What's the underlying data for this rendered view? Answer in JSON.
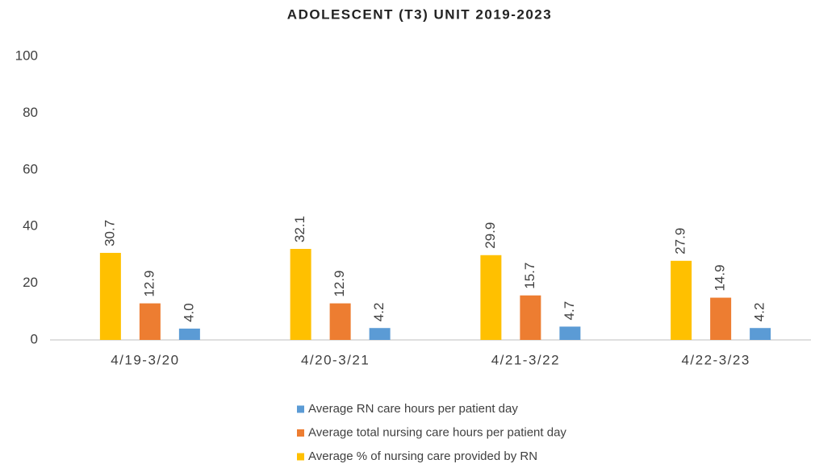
{
  "chart_data": {
    "type": "bar",
    "title": "ADOLESCENT (T3) UNIT 2019-2023",
    "categories": [
      "4/19-3/20",
      "4/20-3/21",
      "4/21-3/22",
      "4/22-3/23"
    ],
    "series": [
      {
        "name": "Average RN care hours per patient day",
        "color": "#5b9bd5",
        "values": [
          4.0,
          4.2,
          4.7,
          4.2
        ],
        "value_labels": [
          "4.0",
          "4.2",
          "4.7",
          "4.2"
        ]
      },
      {
        "name": "Average total nursing care hours per patient day",
        "color": "#ed7d31",
        "values": [
          12.9,
          12.9,
          15.7,
          14.9
        ],
        "value_labels": [
          "12.9",
          "12.9",
          "15.7",
          "14.9"
        ]
      },
      {
        "name": "Average % of nursing care provided by RN",
        "color": "#ffc000",
        "values": [
          30.7,
          32.1,
          29.9,
          27.9
        ],
        "value_labels": [
          "30.7",
          "32.1",
          "29.9",
          "27.9"
        ]
      }
    ],
    "ylim": [
      0,
      100
    ],
    "yticks": [
      0,
      20,
      40,
      60,
      80,
      100
    ],
    "grid": false
  }
}
